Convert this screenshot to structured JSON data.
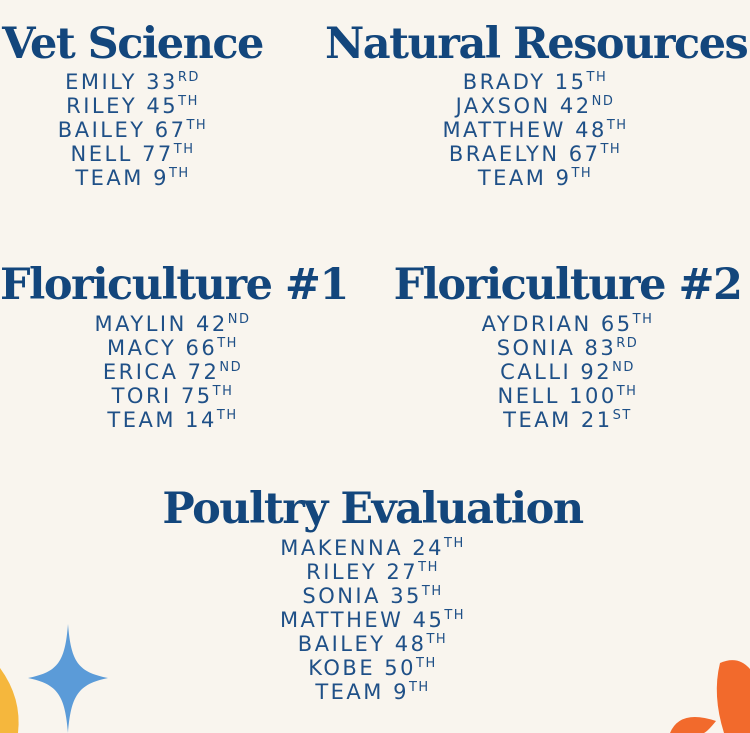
{
  "sections": [
    {
      "title": "Vet Science",
      "entries": [
        {
          "name": "EMILY",
          "place": "33",
          "suffix": "RD"
        },
        {
          "name": "RILEY",
          "place": "45",
          "suffix": "TH"
        },
        {
          "name": "BAILEY",
          "place": "67",
          "suffix": "TH"
        },
        {
          "name": "NELL",
          "place": "77",
          "suffix": "TH"
        },
        {
          "name": "TEAM",
          "place": "9",
          "suffix": "TH"
        }
      ]
    },
    {
      "title": "Natural Resources",
      "entries": [
        {
          "name": "BRADY",
          "place": "15",
          "suffix": "TH"
        },
        {
          "name": "JAXSON",
          "place": "42",
          "suffix": "ND"
        },
        {
          "name": "MATTHEW",
          "place": "48",
          "suffix": "TH"
        },
        {
          "name": "BRAELYN",
          "place": "67",
          "suffix": "TH"
        },
        {
          "name": "TEAM",
          "place": "9",
          "suffix": "TH"
        }
      ]
    },
    {
      "title": "Floriculture #1",
      "entries": [
        {
          "name": "MAYLIN",
          "place": "42",
          "suffix": "ND"
        },
        {
          "name": "MACY",
          "place": "66",
          "suffix": "TH"
        },
        {
          "name": "ERICA",
          "place": "72",
          "suffix": "ND"
        },
        {
          "name": "TORI",
          "place": "75",
          "suffix": "TH"
        },
        {
          "name": "TEAM",
          "place": "14",
          "suffix": "TH"
        }
      ]
    },
    {
      "title": "Floriculture #2",
      "entries": [
        {
          "name": "AYDRIAN",
          "place": "65",
          "suffix": "TH"
        },
        {
          "name": "SONIA",
          "place": "83",
          "suffix": "RD"
        },
        {
          "name": "CALLI",
          "place": "92",
          "suffix": "ND"
        },
        {
          "name": "NELL",
          "place": "100",
          "suffix": "TH"
        },
        {
          "name": "TEAM",
          "place": "21",
          "suffix": "ST"
        }
      ]
    },
    {
      "title": "Poultry Evaluation",
      "entries": [
        {
          "name": "MAKENNA",
          "place": "24",
          "suffix": "TH"
        },
        {
          "name": "RILEY",
          "place": "27",
          "suffix": "TH"
        },
        {
          "name": "SONIA",
          "place": "35",
          "suffix": "TH"
        },
        {
          "name": "MATTHEW",
          "place": "45",
          "suffix": "TH"
        },
        {
          "name": "BAILEY",
          "place": "48",
          "suffix": "TH"
        },
        {
          "name": "KOBE",
          "place": "50",
          "suffix": "TH"
        },
        {
          "name": "TEAM",
          "place": "9",
          "suffix": "TH"
        }
      ]
    }
  ],
  "colors": {
    "background": "#f9f5ee",
    "heading": "#13467c",
    "text": "#1f5087",
    "sparkle": "#5b9bd8",
    "flower": "#f26a2c",
    "accent_yellow": "#f5b73d"
  },
  "decorations": [
    "sparkle-icon",
    "flower-petals-icon",
    "yellow-leaf-icon"
  ]
}
